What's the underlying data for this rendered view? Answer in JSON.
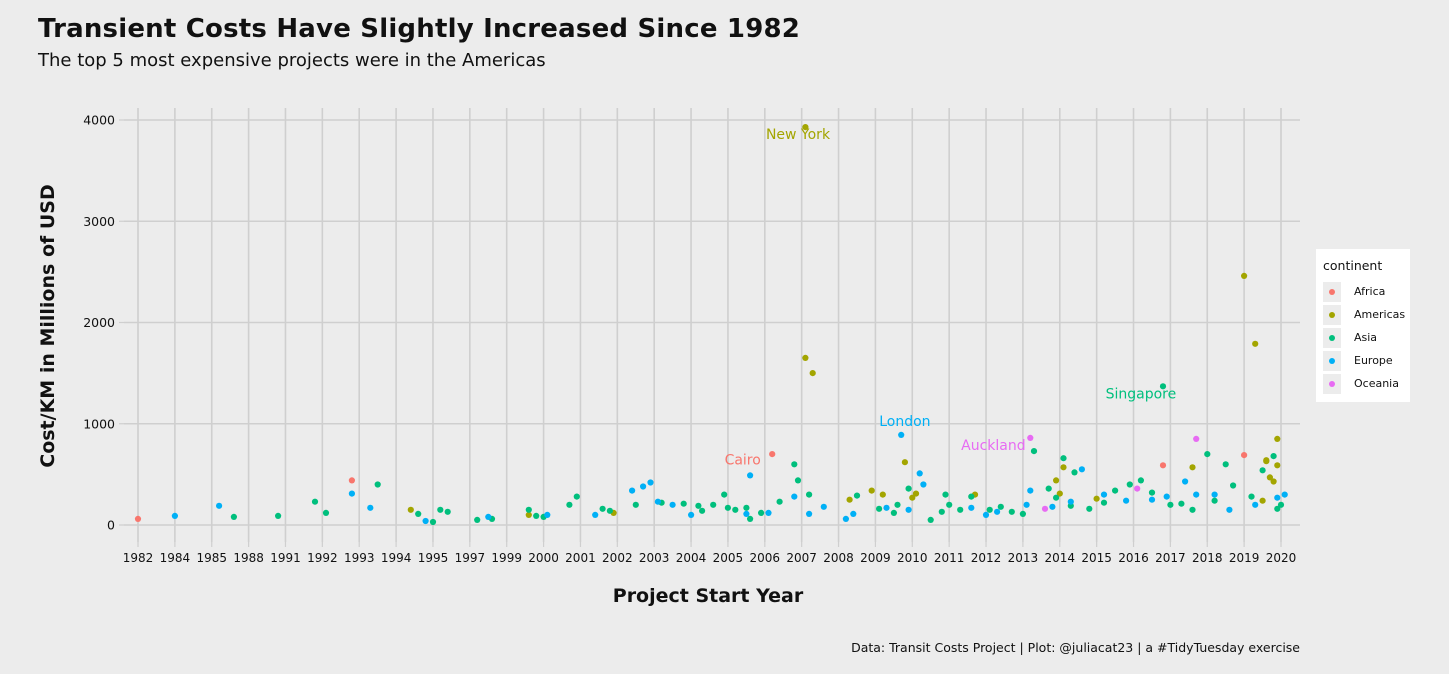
{
  "chart_data": {
    "type": "scatter",
    "title": "Transient Costs Have Slightly Increased Since 1982",
    "subtitle": "The top 5 most expensive projects were in the Americas",
    "xlabel": "Project Start Year",
    "ylabel": "Cost/KM in Millions of USD",
    "caption": "Data: Transit Costs Project | Plot: @juliacat23 | a #TidyTuesday exercise",
    "x_categories": [
      "1982",
      "1984",
      "1985",
      "1988",
      "1991",
      "1992",
      "1993",
      "1994",
      "1995",
      "1997",
      "1999",
      "2000",
      "2001",
      "2002",
      "2003",
      "2004",
      "2005",
      "2006",
      "2007",
      "2008",
      "2009",
      "2010",
      "2011",
      "2012",
      "2013",
      "2014",
      "2015",
      "2016",
      "2017",
      "2018",
      "2019",
      "2020"
    ],
    "ylim": [
      -50,
      4150
    ],
    "yticks": [
      0,
      1000,
      2000,
      3000,
      4000
    ],
    "y_tick_labels": [
      "0",
      "1000",
      "2000",
      "3000",
      "4000"
    ],
    "grid": true,
    "legend_position": "right",
    "legend": {
      "title": "continent",
      "entries": [
        {
          "name": "Africa",
          "color": "#F8766D"
        },
        {
          "name": "Americas",
          "color": "#A3A500"
        },
        {
          "name": "Asia",
          "color": "#00BF7D"
        },
        {
          "name": "Europe",
          "color": "#00B0F6"
        },
        {
          "name": "Oceania",
          "color": "#E76BF3"
        }
      ]
    },
    "annotations": [
      {
        "text": "New York",
        "x": "2006.9",
        "y": 3810,
        "continent": "Americas"
      },
      {
        "text": "London",
        "x": "2009.8",
        "y": 980,
        "continent": "Europe"
      },
      {
        "text": "Cairo",
        "x": "2005.4",
        "y": 600,
        "continent": "Africa"
      },
      {
        "text": "Auckland",
        "x": "2012.2",
        "y": 740,
        "continent": "Oceania"
      },
      {
        "text": "Singapore",
        "x": "2016.2",
        "y": 1250,
        "continent": "Asia"
      }
    ],
    "series": [
      {
        "name": "Africa",
        "points": [
          [
            0.0,
            60
          ],
          [
            5.8,
            440
          ],
          [
            17.2,
            700
          ],
          [
            27.8,
            590
          ],
          [
            30.0,
            690
          ]
        ]
      },
      {
        "name": "Americas",
        "points": [
          [
            7.4,
            150
          ],
          [
            10.6,
            100
          ],
          [
            12.9,
            120
          ],
          [
            18.1,
            3930
          ],
          [
            18.1,
            1650
          ],
          [
            18.3,
            1500
          ],
          [
            19.3,
            250
          ],
          [
            19.9,
            340
          ],
          [
            20.2,
            300
          ],
          [
            20.8,
            620
          ],
          [
            21.0,
            270
          ],
          [
            21.1,
            310
          ],
          [
            22.7,
            300
          ],
          [
            24.9,
            440
          ],
          [
            25.0,
            310
          ],
          [
            25.1,
            570
          ],
          [
            26.0,
            260
          ],
          [
            28.6,
            570
          ],
          [
            30.0,
            2460
          ],
          [
            30.3,
            1790
          ],
          [
            30.6,
            640
          ],
          [
            30.6,
            630
          ],
          [
            30.7,
            470
          ],
          [
            30.9,
            850
          ],
          [
            30.9,
            590
          ],
          [
            30.5,
            240
          ],
          [
            30.8,
            430
          ]
        ]
      },
      {
        "name": "Asia",
        "points": [
          [
            2.6,
            80
          ],
          [
            3.8,
            90
          ],
          [
            4.8,
            230
          ],
          [
            5.1,
            120
          ],
          [
            6.5,
            400
          ],
          [
            7.6,
            110
          ],
          [
            8.0,
            30
          ],
          [
            8.2,
            150
          ],
          [
            8.4,
            130
          ],
          [
            9.2,
            50
          ],
          [
            9.6,
            60
          ],
          [
            10.6,
            150
          ],
          [
            10.8,
            90
          ],
          [
            11.0,
            80
          ],
          [
            11.7,
            200
          ],
          [
            11.9,
            280
          ],
          [
            12.6,
            160
          ],
          [
            12.8,
            140
          ],
          [
            13.5,
            200
          ],
          [
            14.2,
            220
          ],
          [
            14.8,
            210
          ],
          [
            15.2,
            190
          ],
          [
            15.3,
            140
          ],
          [
            15.6,
            200
          ],
          [
            15.9,
            300
          ],
          [
            16.0,
            170
          ],
          [
            16.2,
            150
          ],
          [
            16.5,
            170
          ],
          [
            16.6,
            60
          ],
          [
            16.9,
            120
          ],
          [
            17.4,
            230
          ],
          [
            17.8,
            600
          ],
          [
            17.9,
            440
          ],
          [
            18.2,
            300
          ],
          [
            19.5,
            290
          ],
          [
            20.1,
            160
          ],
          [
            20.5,
            120
          ],
          [
            20.6,
            200
          ],
          [
            20.9,
            360
          ],
          [
            21.5,
            50
          ],
          [
            21.8,
            130
          ],
          [
            21.9,
            300
          ],
          [
            22.0,
            200
          ],
          [
            22.3,
            150
          ],
          [
            22.6,
            280
          ],
          [
            23.1,
            150
          ],
          [
            23.4,
            180
          ],
          [
            23.7,
            130
          ],
          [
            24.0,
            110
          ],
          [
            24.3,
            730
          ],
          [
            24.7,
            360
          ],
          [
            24.9,
            270
          ],
          [
            25.1,
            660
          ],
          [
            25.3,
            190
          ],
          [
            25.4,
            520
          ],
          [
            25.8,
            160
          ],
          [
            26.2,
            220
          ],
          [
            26.5,
            340
          ],
          [
            26.9,
            400
          ],
          [
            27.2,
            440
          ],
          [
            27.5,
            320
          ],
          [
            27.8,
            1370
          ],
          [
            28.0,
            200
          ],
          [
            28.3,
            210
          ],
          [
            28.6,
            150
          ],
          [
            29.0,
            700
          ],
          [
            29.2,
            240
          ],
          [
            29.5,
            600
          ],
          [
            29.7,
            390
          ],
          [
            30.2,
            280
          ],
          [
            30.5,
            540
          ],
          [
            30.8,
            680
          ],
          [
            30.9,
            160
          ],
          [
            31.0,
            200
          ]
        ]
      },
      {
        "name": "Europe",
        "points": [
          [
            1.0,
            90
          ],
          [
            2.2,
            190
          ],
          [
            5.8,
            310
          ],
          [
            6.3,
            170
          ],
          [
            7.8,
            40
          ],
          [
            9.5,
            80
          ],
          [
            11.1,
            100
          ],
          [
            12.4,
            100
          ],
          [
            13.4,
            340
          ],
          [
            13.7,
            380
          ],
          [
            13.9,
            420
          ],
          [
            14.1,
            230
          ],
          [
            14.5,
            200
          ],
          [
            15.0,
            100
          ],
          [
            16.6,
            490
          ],
          [
            16.5,
            110
          ],
          [
            17.1,
            120
          ],
          [
            17.8,
            280
          ],
          [
            18.2,
            110
          ],
          [
            18.6,
            180
          ],
          [
            19.2,
            60
          ],
          [
            19.4,
            110
          ],
          [
            20.3,
            170
          ],
          [
            20.7,
            890
          ],
          [
            20.9,
            150
          ],
          [
            21.2,
            510
          ],
          [
            21.3,
            400
          ],
          [
            22.6,
            170
          ],
          [
            23.0,
            100
          ],
          [
            23.3,
            130
          ],
          [
            24.1,
            200
          ],
          [
            24.2,
            340
          ],
          [
            24.8,
            180
          ],
          [
            25.3,
            230
          ],
          [
            25.6,
            550
          ],
          [
            26.2,
            300
          ],
          [
            26.8,
            240
          ],
          [
            27.5,
            250
          ],
          [
            27.9,
            280
          ],
          [
            28.4,
            430
          ],
          [
            28.7,
            300
          ],
          [
            29.2,
            300
          ],
          [
            29.6,
            150
          ],
          [
            30.3,
            200
          ],
          [
            30.9,
            270
          ],
          [
            31.1,
            300
          ]
        ]
      },
      {
        "name": "Oceania",
        "points": [
          [
            24.2,
            860
          ],
          [
            24.6,
            160
          ],
          [
            27.1,
            360
          ],
          [
            28.7,
            850
          ]
        ]
      }
    ]
  }
}
